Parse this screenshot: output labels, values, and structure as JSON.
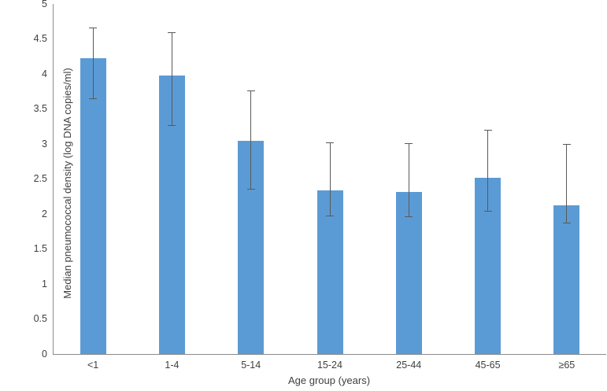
{
  "figure": {
    "background": "#ffffff",
    "bar_color": "#5b9bd5",
    "error_bar_color": "#595959",
    "axis_line_color": "#8c8c8c",
    "text_color": "#3f3f3f"
  },
  "chart_data": {
    "type": "bar",
    "title": "",
    "xlabel": "Age group (years)",
    "ylabel": "Median pneumococcal density (log DNA copies/ml)",
    "categories": [
      "<1",
      "1-4",
      "5-14",
      "15-24",
      "25-44",
      "45-65",
      "≥65"
    ],
    "series": [
      {
        "name": "Median pneumococcal density",
        "values": [
          4.22,
          3.98,
          3.05,
          2.34,
          2.31,
          2.52,
          2.12
        ],
        "error_low": [
          3.65,
          3.27,
          2.36,
          1.98,
          1.97,
          2.05,
          1.88
        ],
        "error_high": [
          4.66,
          4.6,
          3.76,
          3.02,
          3.01,
          3.2,
          3.0
        ]
      }
    ],
    "ylim": [
      0,
      5
    ],
    "ytick_step": 0.5,
    "ytick_labels": [
      "0",
      "0.5",
      "1",
      "1.5",
      "2",
      "2.5",
      "3",
      "3.5",
      "4",
      "4.5",
      "5"
    ],
    "grid": false,
    "legend_position": "none"
  }
}
